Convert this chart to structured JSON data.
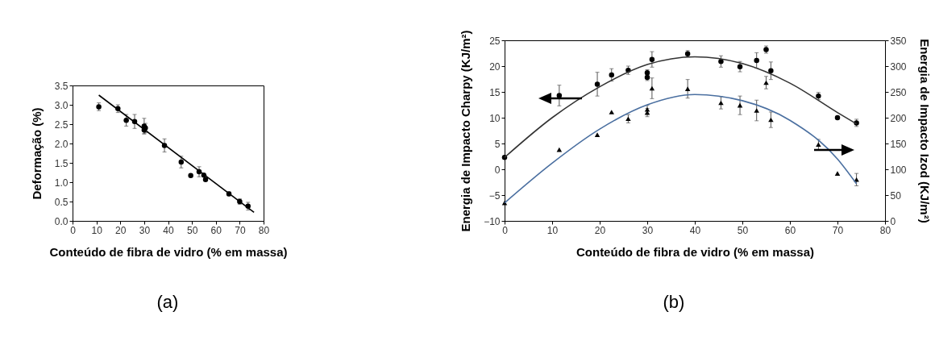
{
  "chart_data": [
    {
      "type": "scatter",
      "xlabel": "Conteúdo de fibra de vidro (% em massa)",
      "ylabel": "Deformação (%)",
      "xlim": [
        0,
        80
      ],
      "xticks": [
        0,
        10,
        20,
        30,
        40,
        50,
        60,
        70,
        80
      ],
      "ylim": [
        0,
        3.5
      ],
      "yticks": [
        {
          "value": 0,
          "label": "0.0"
        },
        {
          "value": 0.5,
          "label": "0.5"
        },
        {
          "value": 1,
          "label": "1.0"
        },
        {
          "value": 1.5,
          "label": "1.5"
        },
        {
          "value": 2,
          "label": "2.0"
        },
        {
          "value": 2.5,
          "label": "2.5"
        },
        {
          "value": 3,
          "label": "3.0"
        },
        {
          "value": 3.5,
          "label": "3.5"
        }
      ],
      "annotations": [
        "(a)"
      ],
      "series": [
        {
          "type": "scatter",
          "color": "#000000",
          "marker": "circle",
          "x": [
            11,
            19,
            22.5,
            26,
            30,
            30,
            30.5,
            38.5,
            45.5,
            49.5,
            53,
            55,
            55.7,
            65.5,
            70,
            73.5
          ],
          "values": [
            2.95,
            2.9,
            2.6,
            2.57,
            2.45,
            2.35,
            2.4,
            1.95,
            1.52,
            1.17,
            1.27,
            1.18,
            1.07,
            0.7,
            0.5,
            0.38
          ],
          "errors": [
            0.1,
            0.1,
            0.15,
            0.18,
            0.2,
            0.1,
            0.12,
            0.17,
            0.15,
            null,
            0.13,
            null,
            null,
            0.05,
            0.07,
            0.1
          ]
        },
        {
          "type": "line",
          "color": "#000000",
          "x": [
            11,
            76
          ],
          "values": [
            3.25,
            0.22
          ]
        }
      ]
    },
    {
      "type": "scatter",
      "xlabel": "Conteúdo de fibra de vidro (% em massa)",
      "ylabel": "Energia de Impacto Charpy (KJ/m²)",
      "y2label": "Energia de Impacto Izod (KJ/m²)",
      "xlim": [
        0,
        80
      ],
      "xticks": [
        0,
        10,
        20,
        30,
        40,
        50,
        60,
        70,
        80
      ],
      "ylim": [
        -10,
        25
      ],
      "yticks": [
        -10,
        -5,
        0,
        5,
        10,
        15,
        20,
        25
      ],
      "y2lim": [
        0,
        350
      ],
      "y2ticks": [
        0,
        50,
        100,
        150,
        200,
        250,
        300,
        350
      ],
      "annotations": [
        "(b)"
      ],
      "series": [
        {
          "type": "scatter",
          "color": "#000000",
          "marker": "circle",
          "x": [
            0,
            11.5,
            19.5,
            22.5,
            26,
            30,
            30,
            31,
            38.5,
            45.5,
            49.5,
            53,
            55,
            56,
            66,
            70,
            74
          ],
          "values": [
            2.3,
            14.3,
            16.5,
            18.3,
            19.2,
            18.7,
            17.8,
            21.3,
            22.4,
            20.9,
            19.9,
            21.1,
            23.2,
            19.1,
            14.2,
            10,
            9
          ],
          "errors": [
            null,
            2,
            2.3,
            1.2,
            0.8,
            0.6,
            0.6,
            1.5,
            0.6,
            1.1,
            1,
            1.5,
            0.7,
            1.7,
            0.7,
            null,
            0.7
          ]
        },
        {
          "type": "scatter",
          "axis": "y2",
          "color": "#000000",
          "marker": "triangle",
          "x": [
            0,
            11.5,
            19.5,
            22.5,
            26,
            30,
            30,
            31,
            38.5,
            45.5,
            49.5,
            53,
            55,
            56,
            66,
            70,
            74
          ],
          "values": [
            35,
            138,
            167,
            211,
            198,
            216,
            210,
            257,
            256,
            229,
            224,
            214,
            268,
            196,
            148,
            92,
            80
          ],
          "errors": [
            null,
            null,
            null,
            null,
            8,
            8,
            8,
            20,
            18,
            12,
            18,
            20,
            12,
            15,
            10,
            null,
            12
          ]
        },
        {
          "type": "line",
          "color": "#333333",
          "x": [
            0,
            10,
            20,
            30,
            40,
            50,
            60,
            70,
            74
          ],
          "values": [
            2.3,
            10,
            16,
            20.3,
            21.8,
            20.5,
            16.7,
            11,
            8.8
          ]
        },
        {
          "type": "line",
          "axis": "y2",
          "color": "#4a6fa0",
          "x": [
            0,
            10,
            20,
            30,
            40,
            50,
            60,
            70,
            74
          ],
          "values": [
            35,
            112,
            178,
            225,
            245,
            233,
            195,
            120,
            72
          ]
        }
      ]
    }
  ]
}
